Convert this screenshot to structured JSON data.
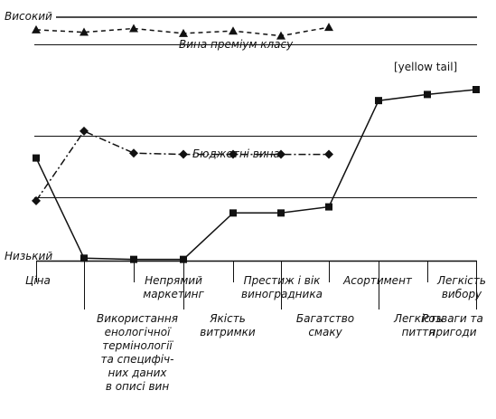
{
  "chart_data": {
    "type": "line",
    "y_level_labels": {
      "high": "Високий",
      "low": "Низький"
    },
    "categories": [
      "Ціна",
      "Використання енологічної термінології та специфічних даних в описі вин",
      "Непрямий маркетинг",
      "Якість витримки",
      "Престиж і вік виноградника",
      "Багатство смаку",
      "Асортимент",
      "Легкість пиття",
      "Легкість вибору",
      "Розваги та пригоди"
    ],
    "category_lines": [
      "Ціна",
      "Використання\nенологічної\nтермінології\nта специфіч-\nних даних\nв описі вин",
      "Непрямий\nмаркетинг",
      "Якість\nвитримки",
      "Престиж і вік\nвиноградника",
      "Багатство\nсмаку",
      "Асортимент",
      "Легкість\nпиття",
      "Легкість\nвибору",
      "Розваги та\nпригоди"
    ],
    "ylim": [
      0,
      10
    ],
    "series": [
      {
        "name": "Вина преміум класу",
        "marker": "triangle",
        "style": "dashed",
        "values": [
          9.45,
          9.35,
          9.5,
          9.3,
          9.4,
          9.2,
          9.55,
          null,
          null,
          null
        ]
      },
      {
        "name": "Бюджетні вина",
        "marker": "diamond",
        "style": "dash-dot",
        "values": [
          2.45,
          5.3,
          4.4,
          4.35,
          4.35,
          4.35,
          4.35,
          null,
          null,
          null
        ]
      },
      {
        "name": "[yellow tail]",
        "marker": "square",
        "style": "solid",
        "values": [
          4.2,
          0.1,
          0.05,
          0.05,
          1.95,
          1.95,
          2.2,
          6.55,
          6.8,
          7.0
        ]
      }
    ],
    "reference_lines": [
      8.85,
      5.1,
      2.6
    ],
    "colors": {
      "line": "#111111",
      "background": "#ffffff"
    }
  }
}
